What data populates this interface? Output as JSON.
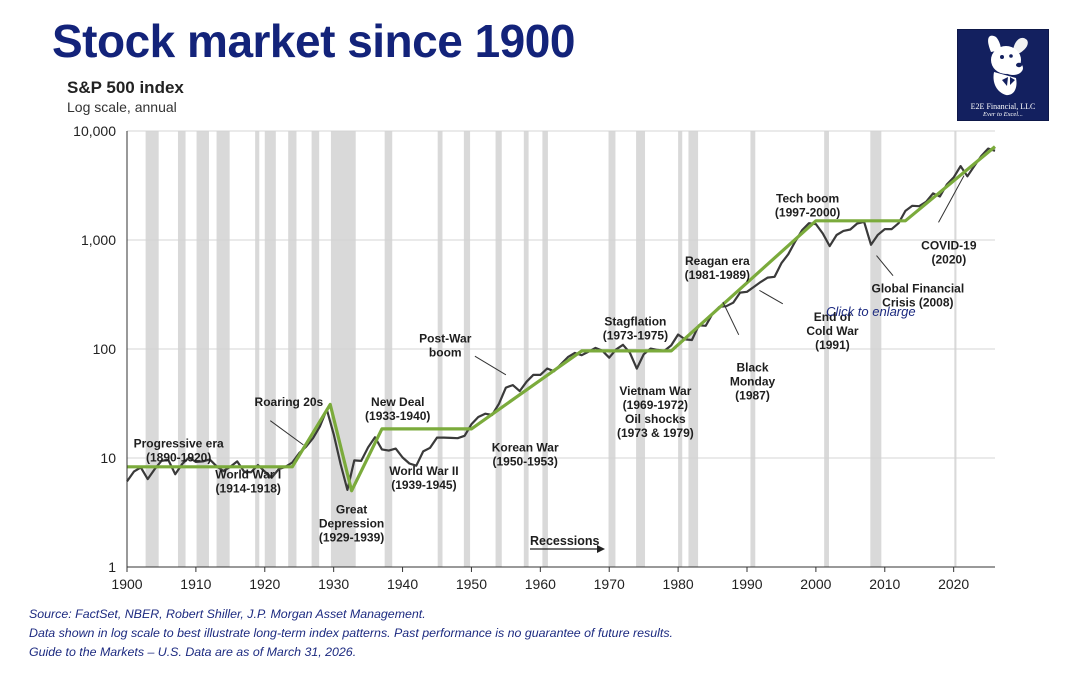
{
  "header": {
    "title": "Stock market since 1900",
    "subtitle": "S&P 500 index",
    "subtitle2": "Log scale, annual"
  },
  "logo": {
    "line1": "E2E Financial, LLC",
    "line2": "Ever to Excel...",
    "icon": "dog-mascot-icon"
  },
  "link": {
    "enlarge": "Click to enlarge"
  },
  "footer": {
    "line1": "Source: FactSet, NBER, Robert Shiller, J.P. Morgan Asset Management.",
    "line2": "Data shown in log scale to best illustrate long-term index patterns. Past performance is no guarantee of future results.",
    "line3": "Guide to the Markets – U.S. Data are as of March 31, 2026."
  },
  "colors": {
    "title": "#13237a",
    "index_line": "#3a3a3a",
    "trend_line": "#7bab3c",
    "recession": "#d9d9d9",
    "footer": "#1c2a80"
  },
  "chart_data": {
    "type": "line",
    "scale": "log",
    "xlim": [
      1900,
      2026
    ],
    "ylim": [
      1,
      10000
    ],
    "y_ticks": [
      1,
      10,
      100,
      1000,
      10000
    ],
    "y_tick_labels": [
      "1",
      "10",
      "100",
      "1,000",
      "10,000"
    ],
    "x_ticks": [
      1900,
      1910,
      1920,
      1930,
      1940,
      1950,
      1960,
      1970,
      1980,
      1990,
      2000,
      2010,
      2020
    ],
    "x_tick_labels": [
      "1900",
      "1910",
      "1920",
      "1930",
      "1940",
      "1950",
      "1960",
      "1970",
      "1980",
      "1990",
      "2000",
      "2010",
      "2020"
    ],
    "grid": "horizontal",
    "recessions": [
      [
        1902.7,
        1904.6
      ],
      [
        1907.4,
        1908.5
      ],
      [
        1910.1,
        1911.9
      ],
      [
        1913.0,
        1914.9
      ],
      [
        1918.6,
        1919.2
      ],
      [
        1920.0,
        1921.6
      ],
      [
        1923.4,
        1924.6
      ],
      [
        1926.8,
        1927.9
      ],
      [
        1929.6,
        1933.2
      ],
      [
        1937.4,
        1938.5
      ],
      [
        1945.1,
        1945.8
      ],
      [
        1948.9,
        1949.8
      ],
      [
        1953.5,
        1954.4
      ],
      [
        1957.6,
        1958.3
      ],
      [
        1960.3,
        1961.1
      ],
      [
        1969.9,
        1970.9
      ],
      [
        1973.9,
        1975.2
      ],
      [
        1980.0,
        1980.6
      ],
      [
        1981.5,
        1982.9
      ],
      [
        1990.5,
        1991.2
      ],
      [
        2001.2,
        2001.9
      ],
      [
        2007.9,
        2009.5
      ],
      [
        2020.1,
        2020.4
      ]
    ],
    "recessions_label": "Recessions",
    "series": [
      {
        "x": [
          1900,
          1901,
          1902,
          1903,
          1904,
          1905,
          1906,
          1907,
          1908,
          1909,
          1910,
          1911,
          1912,
          1913,
          1914,
          1915,
          1916,
          1917,
          1918,
          1919,
          1920,
          1921,
          1922,
          1923,
          1924,
          1925,
          1926,
          1927,
          1928,
          1929,
          1930,
          1931,
          1932,
          1933,
          1934,
          1935,
          1936,
          1937,
          1938,
          1939,
          1940,
          1941,
          1942,
          1943,
          1944,
          1945,
          1946,
          1947,
          1948,
          1949,
          1950,
          1951,
          1952,
          1953,
          1954,
          1955,
          1956,
          1957,
          1958,
          1959,
          1960,
          1961,
          1962,
          1963,
          1964,
          1965,
          1966,
          1967,
          1968,
          1969,
          1970,
          1971,
          1972,
          1973,
          1974,
          1975,
          1976,
          1977,
          1978,
          1979,
          1980,
          1981,
          1982,
          1983,
          1984,
          1985,
          1986,
          1987,
          1988,
          1989,
          1990,
          1991,
          1992,
          1993,
          1994,
          1995,
          1996,
          1997,
          1998,
          1999,
          2000,
          2001,
          2002,
          2003,
          2004,
          2005,
          2006,
          2007,
          2008,
          2009,
          2010,
          2011,
          2012,
          2013,
          2014,
          2015,
          2016,
          2017,
          2018,
          2019,
          2020,
          2021,
          2022,
          2023,
          2024,
          2025,
          2026
        ],
        "values": [
          6.1,
          7.5,
          8.2,
          6.4,
          7.9,
          9.4,
          9.6,
          7.1,
          8.8,
          10.1,
          9.2,
          9.3,
          9.7,
          8.4,
          7.6,
          8.3,
          9.3,
          7.5,
          7.4,
          8.6,
          7.5,
          6.6,
          7.9,
          8.3,
          9.1,
          11.1,
          12.7,
          15.2,
          19.5,
          27.9,
          16.5,
          8.8,
          5.1,
          9.5,
          9.4,
          12.5,
          15.5,
          12.0,
          11.7,
          12.2,
          10.1,
          8.9,
          8.5,
          11.5,
          12.4,
          15.4,
          15.4,
          15.3,
          15.2,
          16.0,
          20.4,
          23.8,
          25.5,
          24.8,
          31.5,
          44.2,
          46.6,
          41.1,
          50.1,
          58.0,
          57.9,
          66.3,
          62.4,
          72.7,
          84.2,
          92.0,
          87.7,
          94.5,
          102.3,
          96.5,
          83.2,
          99.1,
          109.2,
          92.2,
          66.1,
          89.5,
          100.9,
          98.2,
          96.0,
          107.9,
          135.8,
          122.6,
          121.0,
          164.9,
          163.4,
          211.3,
          243.8,
          247.1,
          265.9,
          329.1,
          334.6,
          371.1,
          413.0,
          451.7,
          459.3,
          612.8,
          740.7,
          969.2,
          1229.2,
          1427.0,
          1400.0,
          1148.1,
          879.8,
          1111.9,
          1211.9,
          1248.3,
          1418.3,
          1468.4,
          903.3,
          1115.1,
          1257.6,
          1257.6,
          1426.2,
          1848.4,
          2058.9,
          2043.9,
          2238.8,
          2673.6,
          2506.8,
          3230.8,
          3756.1,
          4766.2,
          3839.5,
          4769.8,
          5881.6,
          6900.0,
          6580.0
        ],
        "name": ""
      },
      {
        "x": [
          1900,
          1924,
          1929.5,
          1932.6,
          1937,
          1950,
          1966,
          1979,
          2000,
          2008,
          2013,
          2026
        ],
        "values": [
          8.3,
          8.3,
          31,
          5,
          18.5,
          18.5,
          96,
          96,
          1500,
          1500,
          1500,
          7200
        ],
        "name": ""
      }
    ],
    "annotations": [
      {
        "text": "Progressive era",
        "text2": "(1890-1920)",
        "x": 1907.5,
        "y": 12.5,
        "anchor": "middle"
      },
      {
        "text": "Roaring 20s",
        "text2": "",
        "x": 1923.5,
        "y": 30,
        "anchor": "middle"
      },
      {
        "text": "World War I",
        "text2": "(1914-1918)",
        "x": 1917.6,
        "y": 6.5,
        "anchor": "middle"
      },
      {
        "text": "Great",
        "text2": "Depression",
        "text3": "(1929-1939)",
        "x": 1932.6,
        "y": 3.1,
        "anchor": "middle"
      },
      {
        "text": "New Deal",
        "text2": "(1933-1940)",
        "x": 1939.3,
        "y": 30,
        "anchor": "middle"
      },
      {
        "text": "World War II",
        "text2": "(1939-1945)",
        "x": 1943.1,
        "y": 7.0,
        "anchor": "middle"
      },
      {
        "text": "Post-War",
        "text2": "boom",
        "x": 1946.2,
        "y": 115,
        "anchor": "middle"
      },
      {
        "text": "Korean War",
        "text2": "(1950-1953)",
        "x": 1957.8,
        "y": 11.5,
        "anchor": "middle"
      },
      {
        "text": "Stagflation",
        "text2": "(1973-1975)",
        "x": 1973.8,
        "y": 165,
        "anchor": "middle"
      },
      {
        "text": "Vietnam War",
        "text2": "(1969-1972)",
        "text3": "Oil shocks",
        "text4": "(1973 & 1979)",
        "x": 1976.7,
        "y": 38,
        "anchor": "middle"
      },
      {
        "text": "Reagan era",
        "text2": "(1981-1989)",
        "x": 1985.7,
        "y": 590,
        "anchor": "middle"
      },
      {
        "text": "Black",
        "text2": "Monday",
        "text3": "(1987)",
        "x": 1990.8,
        "y": 62,
        "anchor": "middle"
      },
      {
        "text": "End of",
        "text2": "Cold War",
        "text3": "(1991)",
        "x": 2002.4,
        "y": 180,
        "anchor": "middle"
      },
      {
        "text": "Tech boom",
        "text2": "(1997-2000)",
        "x": 1998.8,
        "y": 2200,
        "anchor": "middle"
      },
      {
        "text": "Global Financial",
        "text2": "Crisis (2008)",
        "x": 2014.8,
        "y": 330,
        "anchor": "middle"
      },
      {
        "text": "COVID-19",
        "text2": "(2020)",
        "x": 2019.3,
        "y": 820,
        "anchor": "middle"
      }
    ],
    "leaders": [
      {
        "x1": 1920.8,
        "y1": 22,
        "x2": 1925.6,
        "y2": 13.2
      },
      {
        "x1": 1950.5,
        "y1": 86,
        "x2": 1955,
        "y2": 58
      },
      {
        "x1": 1988.8,
        "y1": 135,
        "x2": 1986.5,
        "y2": 270
      },
      {
        "x1": 1995.2,
        "y1": 260,
        "x2": 1991.8,
        "y2": 345
      },
      {
        "x1": 2011.2,
        "y1": 470,
        "x2": 2008.8,
        "y2": 720
      },
      {
        "x1": 2017.8,
        "y1": 1450,
        "x2": 2021.5,
        "y2": 3900
      }
    ]
  }
}
